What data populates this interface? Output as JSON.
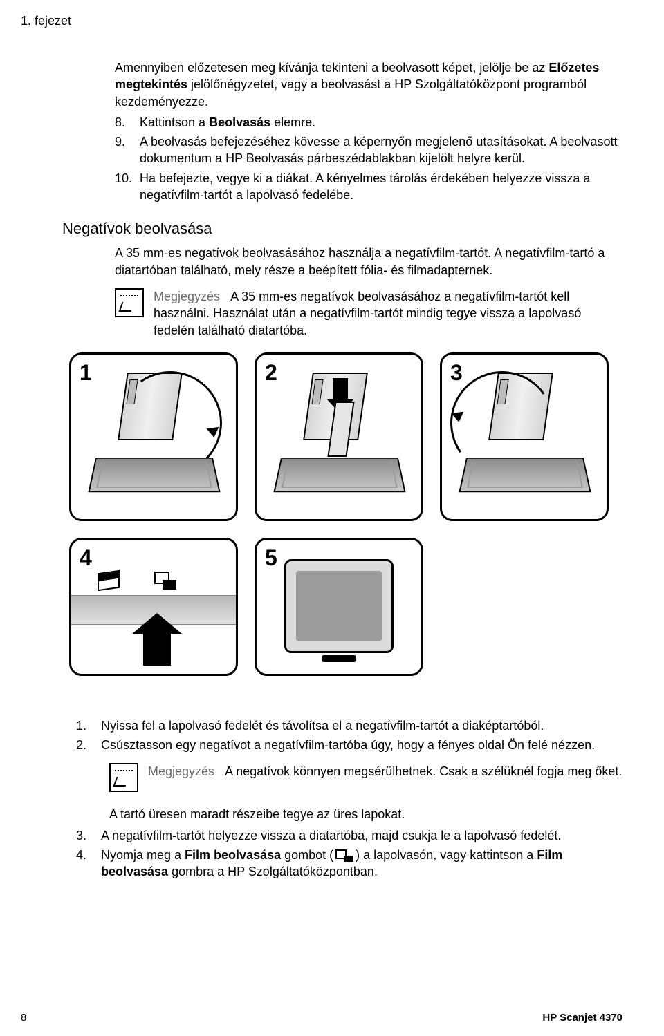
{
  "chapter_title": "1. fejezet",
  "intro": {
    "paragraph_pre": "Amennyiben előzetesen meg kívánja tekinteni a beolvasott képet, jelölje be az ",
    "bold1": "Előzetes megtekintés",
    "paragraph_post": " jelölőnégyzetet, vagy a beolvasást a HP Szolgáltatóközpont programból kezdeményezze."
  },
  "steps_top": [
    {
      "num": "8.",
      "pre": "Kattintson a ",
      "bold": "Beolvasás",
      "post": " elemre."
    },
    {
      "num": "9.",
      "pre": "A beolvasás befejezéséhez kövesse a képernyőn megjelenő utasításokat. A beolvasott dokumentum a HP Beolvasás párbeszédablakban kijelölt helyre kerül.",
      "bold": "",
      "post": ""
    },
    {
      "num": "10.",
      "pre": "Ha befejezte, vegye ki a diákat. A kényelmes tárolás érdekében helyezze vissza a negatívfilm-tartót a lapolvasó fedelébe.",
      "bold": "",
      "post": ""
    }
  ],
  "section_heading": "Negatívok beolvasása",
  "section_intro": "A 35 mm-es negatívok beolvasásához használja a negatívfilm-tartót. A negatívfilm-tartó a diatartóban található, mely része a beépített fólia- és filmadapternek.",
  "note1": {
    "label": "Megjegyzés",
    "text": "A 35 mm-es negatívok beolvasásához a negatívfilm-tartót kell használni. Használat után a negatívfilm-tartót mindig tegye vissza a lapolvasó fedelén található diatartóba."
  },
  "fig_nums": [
    "1",
    "2",
    "3",
    "4",
    "5"
  ],
  "lower_steps": [
    {
      "num": "1.",
      "text": "Nyissa fel a lapolvasó fedelét és távolítsa el a negatívfilm-tartót a diaképtartóból."
    },
    {
      "num": "2.",
      "text": "Csúsztasson egy negatívot a negatívfilm-tartóba úgy, hogy a fényes oldal Ön felé nézzen."
    }
  ],
  "note2": {
    "label": "Megjegyzés",
    "text": "A negatívok könnyen megsérülhetnek. Csak a szélüknél fogja meg őket."
  },
  "after_note2": "A tartó üresen maradt részeibe tegye az üres lapokat.",
  "step3": {
    "num": "3.",
    "text": "A negatívfilm-tartót helyezze vissza a diatartóba, majd csukja le a lapolvasó fedelét."
  },
  "step4": {
    "num": "4.",
    "pre": "Nyomja meg a ",
    "bold1": "Film beolvasása",
    "mid": " gombot (",
    "post_icon": ") a lapolvasón, vagy kattintson a ",
    "bold2": "Film beolvasása",
    "tail": " gombra a HP Szolgáltatóközpontban."
  },
  "footer": {
    "page_no": "8",
    "model": "HP Scanjet 4370"
  }
}
